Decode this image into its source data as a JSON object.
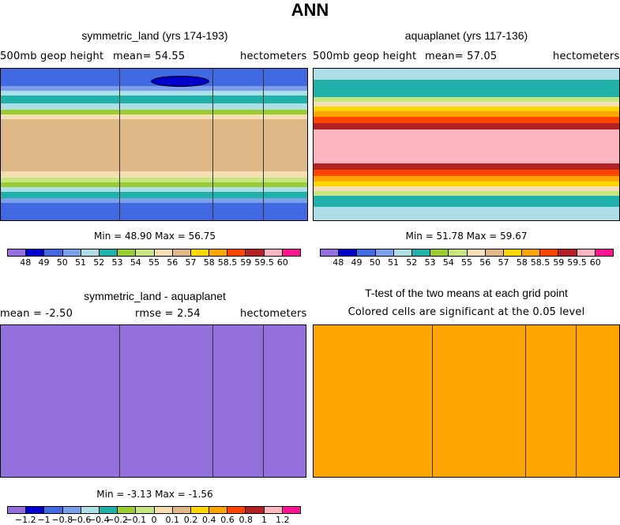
{
  "chart_data": [
    {
      "type": "heatmap",
      "title": "symmetric_land (yrs 174-193)",
      "left_label": "500mb  geop  height",
      "center_label": "mean=   54.55",
      "right_label": "hectometers",
      "stats": "Min =   48.90  Max =   56.75",
      "min": 48.9,
      "max": 56.75,
      "mean": 54.55,
      "colorbar_ticks": [
        "48",
        "49",
        "50",
        "51",
        "52",
        "53",
        "54",
        "55",
        "56",
        "57",
        "58",
        "58.5",
        "59",
        "59.5",
        "60"
      ]
    },
    {
      "type": "heatmap",
      "title": "aquaplanet (yrs 117-136)",
      "left_label": "500mb  geop  height",
      "center_label": "mean=   57.05",
      "right_label": "hectometers",
      "stats": "Min =   51.78  Max =   59.67",
      "min": 51.78,
      "max": 59.67,
      "mean": 57.05,
      "colorbar_ticks": [
        "48",
        "49",
        "50",
        "51",
        "52",
        "53",
        "54",
        "55",
        "56",
        "57",
        "58",
        "58.5",
        "59",
        "59.5",
        "60"
      ]
    },
    {
      "type": "heatmap",
      "title": "symmetric_land - aquaplanet",
      "left_label": "mean =   -2.50",
      "center_label": "rmse =    2.54",
      "right_label": "hectometers",
      "stats": "Min =   -3.13  Max =   -1.56",
      "min": -3.13,
      "max": -1.56,
      "mean": -2.5,
      "rmse": 2.54,
      "colorbar_ticks": [
        "-1.2",
        "-1",
        "-0.8",
        "-0.6",
        "-0.4",
        "-0.2",
        "-0.1",
        "0",
        "0.1",
        "0.2",
        "0.4",
        "0.6",
        "0.8",
        "1",
        "1.2"
      ]
    },
    {
      "type": "heatmap",
      "title": "T-test of the two means at each grid point",
      "subtitle": "Colored cells are significant at the 0.05 level"
    }
  ],
  "main_title": "ANN",
  "colors": {
    "scale16": [
      "#9370db",
      "#0000cd",
      "#4169e1",
      "#7b9fe8",
      "#afdfe6",
      "#20b2aa",
      "#9acd32",
      "#c8e680",
      "#f5deb3",
      "#deb887",
      "#ffd700",
      "#ffa500",
      "#ff4500",
      "#b22222",
      "#ffb6c1",
      "#ff1493"
    ],
    "diff_fill": "#9370db",
    "ttest_fill": "#ffa500"
  }
}
